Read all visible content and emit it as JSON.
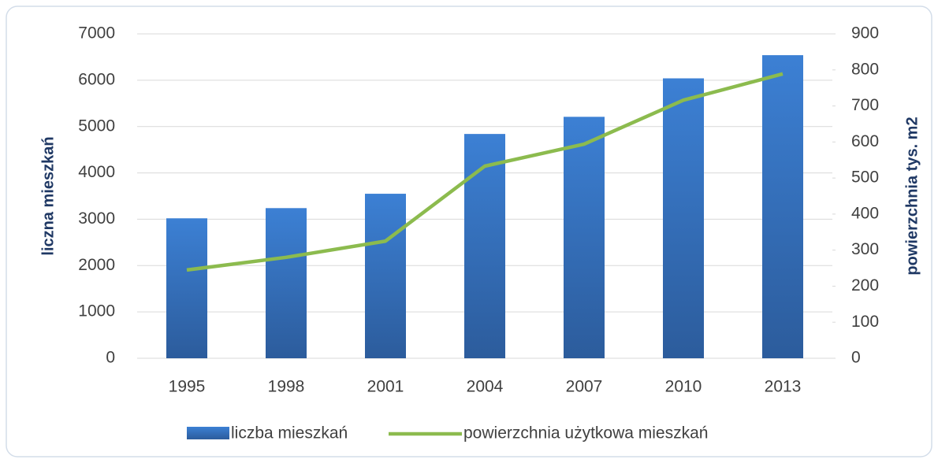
{
  "chart_data": {
    "type": "bar-line",
    "categories": [
      "1995",
      "1998",
      "2001",
      "2004",
      "2007",
      "2010",
      "2013"
    ],
    "series": [
      {
        "name": "liczba mieszkań",
        "type": "bar",
        "color": "#3a7dd0",
        "values": [
          3020,
          3240,
          3550,
          4840,
          5210,
          6040,
          6540
        ]
      },
      {
        "name": "powierzchnia użytkowa mieszkań",
        "type": "line",
        "axis": "y2",
        "color": "#8cbb4e",
        "values": [
          245,
          280,
          325,
          533,
          594,
          716,
          789
        ]
      }
    ],
    "ylabel": "liczna mieszkań",
    "y2label": "powierzchnia tys. m2",
    "ylim": [
      0,
      7000
    ],
    "yticks": [
      0,
      1000,
      2000,
      3000,
      4000,
      5000,
      6000,
      7000
    ],
    "y2lim": [
      0,
      900
    ],
    "y2ticks": [
      0,
      100,
      200,
      300,
      400,
      500,
      600,
      700,
      800,
      900
    ],
    "grid": true,
    "legend": "bottom"
  }
}
